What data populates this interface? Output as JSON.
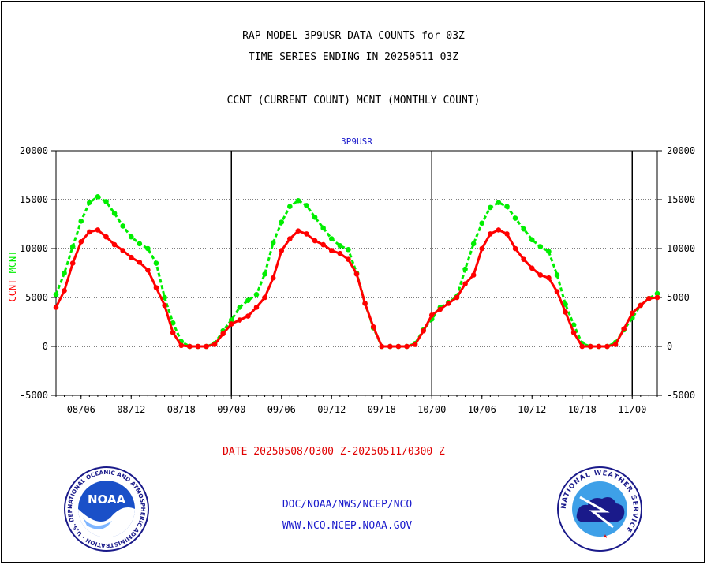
{
  "header": {
    "line1": "RAP MODEL 3P9USR DATA COUNTS for 03Z",
    "line2": "TIME SERIES ENDING IN 20250511 03Z",
    "line3": "CCNT (CURRENT COUNT) MCNT (MONTHLY COUNT)"
  },
  "date_range": "DATE 20250508/0300 Z-20250511/0300 Z",
  "footer": {
    "line1": "DOC/NOAA/NWS/NCEP/NCO",
    "line2": "WWW.NCO.NCEP.NOAA.GOV"
  },
  "logos": {
    "noaa_text": "NOAA",
    "noaa_ring": "NATIONAL OCEANIC AND ATMOSPHERIC ADMINISTRATION · U.S. DEPARTMENT OF COMMERCE ·",
    "nws_ring": "NATIONAL WEATHER SERVICE"
  },
  "chart_data": {
    "type": "line",
    "title": "3P9USR",
    "ylabel_ccnt": "CCNT",
    "ylabel_mcnt": "MCNT",
    "ylim": [
      -5000,
      20000
    ],
    "yticks": [
      -5000,
      0,
      5000,
      10000,
      15000,
      20000
    ],
    "ytick_labels": [
      "-5000",
      "0",
      "5000",
      "10000",
      "15000",
      "20000"
    ],
    "xlim": [
      0,
      72
    ],
    "xticks": [
      3,
      9,
      15,
      21,
      27,
      33,
      39,
      45,
      51,
      57,
      63,
      69
    ],
    "xtick_labels": [
      "08/06",
      "08/12",
      "08/18",
      "09/00",
      "09/06",
      "09/12",
      "09/18",
      "10/00",
      "10/06",
      "10/12",
      "10/18",
      "11/00"
    ],
    "day_boundaries": [
      21,
      45,
      69
    ],
    "grid": "horizontal",
    "colors": {
      "ccnt": "#ff0000",
      "mcnt": "#00ee00",
      "axis": "#000000",
      "title": "#1a1acc"
    },
    "series": [
      {
        "name": "CCNT",
        "x": [
          0,
          1,
          2,
          3,
          4,
          5,
          6,
          7,
          8,
          9,
          10,
          11,
          12,
          13,
          14,
          15,
          16,
          17,
          18,
          19,
          20,
          21,
          22,
          23,
          24,
          25,
          26,
          27,
          28,
          29,
          30,
          31,
          32,
          33,
          34,
          35,
          36,
          37,
          38,
          39,
          40,
          41,
          42,
          43,
          44,
          45,
          46,
          47,
          48,
          49,
          50,
          51,
          52,
          53,
          54,
          55,
          56,
          57,
          58,
          59,
          60,
          61,
          62,
          63,
          64,
          65,
          66,
          67,
          68,
          69,
          70,
          71,
          72
        ],
        "values": [
          4000,
          5700,
          8500,
          10700,
          11700,
          11900,
          11200,
          10400,
          9800,
          9100,
          8600,
          7800,
          6000,
          4200,
          1400,
          100,
          0,
          0,
          0,
          200,
          1300,
          2300,
          2700,
          3100,
          4000,
          5000,
          7000,
          9800,
          11000,
          11800,
          11500,
          10800,
          10400,
          9800,
          9500,
          8900,
          7400,
          4400,
          2000,
          0,
          0,
          0,
          0,
          200,
          1600,
          3200,
          3800,
          4400,
          5000,
          6400,
          7300,
          10000,
          11500,
          11900,
          11500,
          10000,
          8900,
          8000,
          7300,
          7000,
          5600,
          3500,
          1400,
          0,
          0,
          0,
          0,
          200,
          1800,
          3400,
          4200,
          4900,
          5000
        ]
      },
      {
        "name": "MCNT",
        "x": [
          0,
          1,
          2,
          3,
          4,
          5,
          6,
          7,
          8,
          9,
          10,
          11,
          12,
          13,
          14,
          15,
          16,
          17,
          18,
          19,
          20,
          21,
          22,
          23,
          24,
          25,
          26,
          27,
          28,
          29,
          30,
          31,
          32,
          33,
          34,
          35,
          36,
          37,
          38,
          39,
          40,
          41,
          42,
          43,
          44,
          45,
          46,
          47,
          48,
          49,
          50,
          51,
          52,
          53,
          54,
          55,
          56,
          57,
          58,
          59,
          60,
          61,
          62,
          63,
          64,
          65,
          66,
          67,
          68,
          69,
          70,
          71,
          72
        ],
        "values": [
          5300,
          7500,
          10200,
          12800,
          14700,
          15300,
          14800,
          13600,
          12300,
          11200,
          10500,
          10000,
          8500,
          5000,
          2400,
          500,
          0,
          0,
          0,
          300,
          1600,
          2700,
          4000,
          4700,
          5300,
          7400,
          10600,
          12700,
          14300,
          14900,
          14400,
          13200,
          12100,
          11000,
          10300,
          9900,
          7500,
          4400,
          1900,
          0,
          0,
          0,
          0,
          300,
          1700,
          2800,
          4000,
          4500,
          5100,
          7900,
          10500,
          12600,
          14200,
          14700,
          14300,
          13100,
          12000,
          10900,
          10200,
          9700,
          7300,
          4300,
          2200,
          300,
          0,
          0,
          0,
          400,
          1700,
          2900,
          4200,
          4900,
          5400
        ]
      }
    ]
  }
}
